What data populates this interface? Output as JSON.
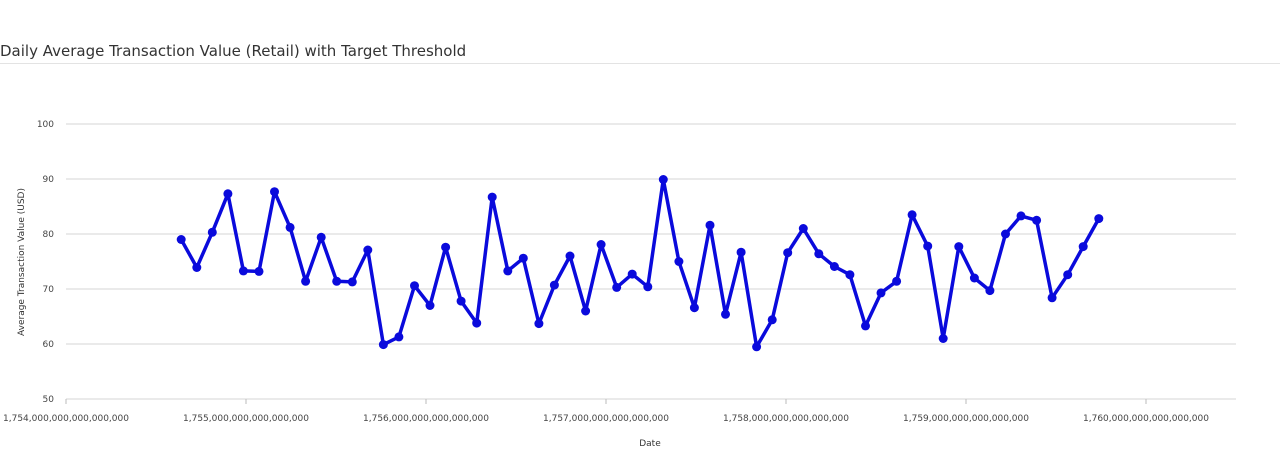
{
  "chart_data": {
    "type": "line",
    "title": "Daily Average Transaction Value (Retail) with Target Threshold",
    "xlabel": "Date",
    "ylabel": "Average Transaction Value (USD)",
    "xlim": [
      1754000000000000000,
      1760500000000000000
    ],
    "ylim": [
      50,
      100
    ],
    "x_tick_labels": [
      "1,754,000,000,000,000,000",
      "1,755,000,000,000,000,000",
      "1,756,000,000,000,000,000",
      "1,757,000,000,000,000,000",
      "1,758,000,000,000,000,000",
      "1,759,000,000,000,000,000",
      "1,760,000,000,000,000,000"
    ],
    "y_tick_labels": [
      "50",
      "60",
      "70",
      "80",
      "90",
      "100"
    ],
    "grid": true,
    "legend": "none",
    "series": [
      {
        "color": "#0a0adc",
        "x": [
          1754640000000000000,
          1754726400000000000,
          1754812800000000000,
          1754899200000000000,
          1754985600000000000,
          1755072000000000000,
          1755158400000000000,
          1755244800000000000,
          1755331200000000000,
          1755417600000000000,
          1755504000000000000,
          1755590400000000000,
          1755676800000000000,
          1755763200000000000,
          1755849600000000000,
          1755936000000000000,
          1756022400000000000,
          1756108800000000000,
          1756195200000000000,
          1756281600000000000,
          1756368000000000000,
          1756454400000000000,
          1756540800000000000,
          1756627200000000000,
          1756713600000000000,
          1756800000000000000,
          1756886400000000000,
          1756972800000000000,
          1757059200000000000,
          1757145600000000000,
          1757232000000000000,
          1757318400000000000,
          1757404800000000000,
          1757491200000000000,
          1757577600000000000,
          1757664000000000000,
          1757750400000000000,
          1757836800000000000,
          1757923200000000000,
          1758009600000000000,
          1758096000000000000,
          1758182400000000000,
          1758268800000000000,
          1758355200000000000,
          1758441600000000000,
          1758528000000000000,
          1758614400000000000,
          1758700800000000000,
          1758787200000000000,
          1758873600000000000,
          1758960000000000000,
          1759046400000000000,
          1759132800000000000,
          1759219200000000000,
          1759305600000000000,
          1759392000000000000,
          1759478400000000000,
          1759564800000000000,
          1759651200000000000,
          1759737600000000000
        ],
        "y": [
          79.0,
          73.9,
          80.3,
          87.3,
          73.3,
          73.2,
          87.7,
          81.2,
          71.4,
          79.4,
          71.4,
          71.3,
          77.1,
          59.9,
          61.3,
          70.6,
          67.0,
          77.6,
          67.8,
          63.8,
          86.7,
          73.3,
          75.6,
          63.7,
          70.7,
          76.0,
          66.0,
          78.1,
          70.3,
          72.7,
          70.4,
          89.9,
          75.0,
          66.6,
          81.6,
          65.4,
          76.7,
          59.5,
          64.4,
          76.6,
          81.0,
          76.4,
          74.1,
          72.6,
          63.3,
          69.3,
          71.4,
          83.5,
          77.8,
          61.0,
          77.7,
          72.0,
          69.7,
          80.0,
          83.3,
          82.5,
          68.4,
          72.6,
          77.7,
          82.8
        ]
      }
    ]
  }
}
